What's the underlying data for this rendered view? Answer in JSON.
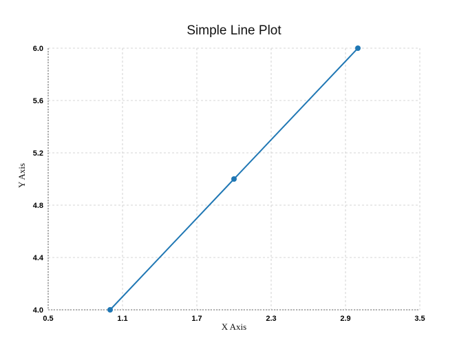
{
  "chart_data": {
    "type": "line",
    "title": "Simple Line Plot",
    "xlabel": "X Axis",
    "ylabel": "Y Axis",
    "xlim": [
      0.5,
      3.5
    ],
    "ylim": [
      4.0,
      6.0
    ],
    "xticks": [
      "0.5",
      "1.1",
      "1.7",
      "2.3",
      "2.9",
      "3.5"
    ],
    "yticks": [
      "4.0",
      "4.4",
      "4.8",
      "5.2",
      "5.6",
      "6.0"
    ],
    "grid": true,
    "series": [
      {
        "x": [
          1,
          2,
          3
        ],
        "values": [
          4,
          5,
          6
        ],
        "color": "#1f77b4",
        "marker": "circle"
      }
    ]
  }
}
